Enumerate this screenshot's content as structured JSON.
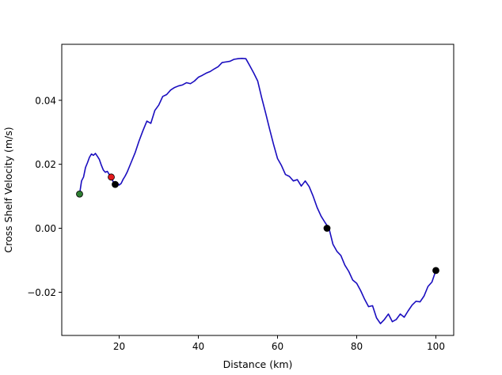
{
  "chart_data": {
    "type": "line",
    "title": "",
    "xlabel": "Distance (km)",
    "ylabel": "Cross Shelf Velocity (m/s)",
    "xlim": [
      5.5,
      104.5
    ],
    "ylim": [
      -0.0335,
      0.0575
    ],
    "xticks": [
      20,
      40,
      60,
      80,
      100
    ],
    "yticks": [
      -0.02,
      0.0,
      0.02,
      0.04
    ],
    "xtick_labels": [
      "20",
      "40",
      "60",
      "80",
      "100"
    ],
    "ytick_labels": [
      "−0.02",
      "0.00",
      "0.02",
      "0.04"
    ],
    "grid": false,
    "series": [
      {
        "color": "#1a0dbf",
        "x": [
          10,
          10.5,
          11,
          11.5,
          12,
          12.5,
          13,
          13.5,
          14,
          14.5,
          15,
          15.5,
          16,
          16.5,
          17,
          17.5,
          18,
          18.5,
          19,
          19.5,
          20,
          20.5,
          21,
          21.5,
          22,
          23,
          24,
          25,
          26,
          27,
          28,
          29,
          30,
          31,
          32,
          33,
          34,
          35,
          36,
          37,
          38,
          39,
          40,
          41,
          42,
          43,
          44,
          45,
          46,
          47,
          48,
          49,
          50,
          51,
          52,
          53,
          54,
          55,
          56,
          57,
          58,
          59,
          60,
          61,
          62,
          63,
          64,
          65,
          66,
          67,
          68,
          69,
          70,
          71,
          72,
          73,
          74,
          75,
          76,
          77,
          78,
          79,
          80,
          81,
          82,
          83,
          84,
          85,
          86,
          87,
          88,
          89,
          90,
          91,
          92,
          93,
          94,
          95,
          96,
          97,
          98,
          99,
          100
        ],
        "y": [
          0.0107,
          0.0148,
          0.016,
          0.019,
          0.0205,
          0.0222,
          0.0232,
          0.0228,
          0.0234,
          0.0225,
          0.0215,
          0.0197,
          0.0182,
          0.0175,
          0.0178,
          0.0168,
          0.016,
          0.0145,
          0.0137,
          0.0142,
          0.0135,
          0.014,
          0.0153,
          0.0163,
          0.0175,
          0.0205,
          0.0235,
          0.0272,
          0.0305,
          0.0335,
          0.0328,
          0.0368,
          0.0385,
          0.0412,
          0.0418,
          0.0432,
          0.044,
          0.0445,
          0.0448,
          0.0455,
          0.0452,
          0.046,
          0.0472,
          0.0478,
          0.0485,
          0.049,
          0.0498,
          0.0505,
          0.0518,
          0.052,
          0.0522,
          0.0528,
          0.053,
          0.0531,
          0.053,
          0.0508,
          0.0485,
          0.046,
          0.0408,
          0.036,
          0.031,
          0.0262,
          0.0218,
          0.0196,
          0.0168,
          0.0162,
          0.0148,
          0.0152,
          0.0132,
          0.0148,
          0.013,
          0.01,
          0.0065,
          0.0038,
          0.0018,
          0.0,
          -0.005,
          -0.0072,
          -0.0085,
          -0.0115,
          -0.0135,
          -0.0162,
          -0.0172,
          -0.0195,
          -0.0222,
          -0.0245,
          -0.0242,
          -0.028,
          -0.0298,
          -0.0285,
          -0.0268,
          -0.0292,
          -0.0285,
          -0.0268,
          -0.0278,
          -0.0258,
          -0.024,
          -0.0228,
          -0.023,
          -0.0212,
          -0.0182,
          -0.0168,
          -0.0132
        ]
      }
    ],
    "markers": [
      {
        "x": 10,
        "y": 0.0107,
        "color": "#2e7d32"
      },
      {
        "x": 18,
        "y": 0.016,
        "color": "#e31a1c"
      },
      {
        "x": 19,
        "y": 0.0137,
        "color": "#000000"
      },
      {
        "x": 72.5,
        "y": 0.0,
        "color": "#000000"
      },
      {
        "x": 100,
        "y": -0.0132,
        "color": "#000000"
      }
    ]
  }
}
